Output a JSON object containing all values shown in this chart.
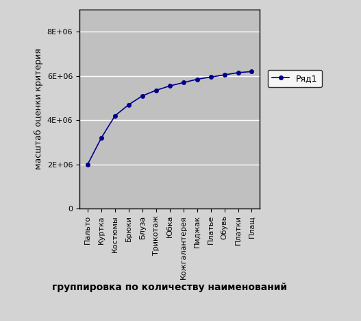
{
  "categories": [
    "Пальто",
    "Куртка",
    "Костюмы",
    "Брюки",
    "Блуза",
    "Трикотаж",
    "Юбка",
    "Кожгалантерея",
    "Пиджак",
    "Платье",
    "Обувь",
    "Платки",
    "Плащ"
  ],
  "values": [
    2000000,
    3200000,
    4200000,
    4700000,
    5100000,
    5350000,
    5550000,
    5700000,
    5850000,
    5950000,
    6050000,
    6150000,
    6200000
  ],
  "line_color": "#00008B",
  "marker": "o",
  "marker_size": 4,
  "legend_label": "Ряд1",
  "xlabel": "группировка по количеству наименований",
  "ylabel": "масштаб оценки критерия",
  "ylim": [
    0,
    9000000
  ],
  "yticks": [
    0,
    2000000,
    4000000,
    6000000,
    8000000
  ],
  "ytick_labels": [
    "0",
    "2E+06",
    "4E+06",
    "6E+06",
    "8E+06"
  ],
  "plot_bg_color": "#C0C0C0",
  "fig_bg_color": "#D3D3D3",
  "grid_color": "#FFFFFF",
  "border_color": "#000000",
  "label_fontsize": 9,
  "tick_fontsize": 8,
  "legend_fontsize": 9,
  "xlabel_fontsize": 10,
  "xlabel_fontweight": "bold"
}
